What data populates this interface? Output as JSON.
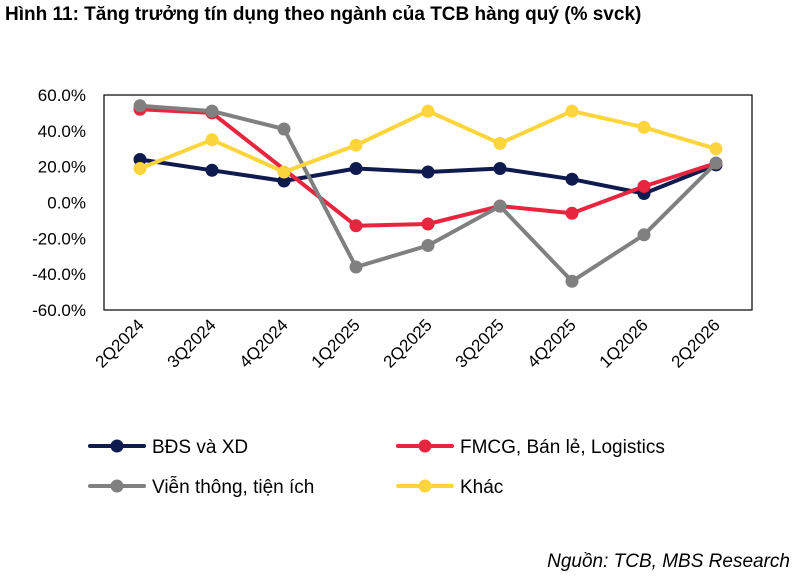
{
  "title": "Hình 11: Tăng trưởng tín dụng theo ngành của TCB hàng quý (% svck)",
  "source": "Nguồn: TCB, MBS Research",
  "chart_data": {
    "type": "line",
    "categories": [
      "2Q2024",
      "3Q2024",
      "4Q2024",
      "1Q2025",
      "2Q2025",
      "3Q2025",
      "4Q2025",
      "1Q2026",
      "2Q2026"
    ],
    "ylim": [
      -60,
      60
    ],
    "yticks": [
      60,
      40,
      20,
      0,
      -20,
      -40,
      -60
    ],
    "ytick_labels": [
      "60.0%",
      "40.0%",
      "20.0%",
      "0.0%",
      "-20.0%",
      "-40.0%",
      "-60.0%"
    ],
    "grid": false,
    "legend_position": "bottom",
    "series": [
      {
        "name": "BĐS và XD",
        "color": "#0f1a4f",
        "values": [
          24,
          18,
          12,
          19,
          17,
          19,
          13,
          5,
          21
        ]
      },
      {
        "name": "FMCG, Bán lẻ, Logistics",
        "color": "#e8253e",
        "values": [
          52,
          50,
          null,
          -13,
          -12,
          -2,
          -6,
          9,
          22
        ]
      },
      {
        "name": "Viễn thông, tiện ích",
        "color": "#808080",
        "values": [
          54,
          51,
          41,
          -36,
          -24,
          -2,
          -44,
          -18,
          22
        ]
      },
      {
        "name": "Khác",
        "color": "#fcd53d",
        "values": [
          19,
          35,
          17,
          32,
          51,
          33,
          51,
          42,
          30
        ]
      }
    ]
  }
}
